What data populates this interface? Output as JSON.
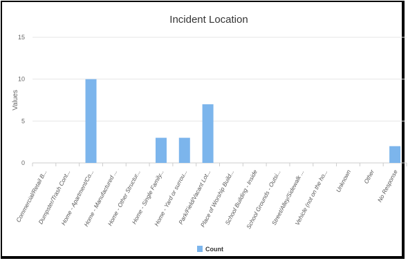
{
  "chart_data": {
    "type": "bar",
    "title": "Incident Location",
    "ylabel": "Values",
    "xlabel": "",
    "ylim": [
      0,
      15
    ],
    "yticks": [
      0,
      5,
      10,
      15
    ],
    "grid": true,
    "legend_position": "bottom-center",
    "categories": [
      "Commercial/Retail B...",
      "Dumpster/Trash Cont...",
      "Home - Apartment/Co...",
      "Home - Manufactured ...",
      "Home - Other Structur...",
      "Home - Single Family...",
      "Home - Yard or surrou...",
      "Park/Field/Vacant Lot...",
      "Place of Worship Build...",
      "School Building - Inside",
      "School Grounds - Outsi...",
      "Street/Alley/Sidewalk ...",
      "Vehicle (not on the ho...",
      "Unknown",
      "Other",
      "No Response"
    ],
    "series": [
      {
        "name": "Count",
        "color": "#7cb5ec",
        "values": [
          0,
          0,
          10,
          0,
          0,
          3,
          3,
          7,
          0,
          0,
          0,
          0,
          0,
          0,
          0,
          2
        ]
      }
    ]
  }
}
